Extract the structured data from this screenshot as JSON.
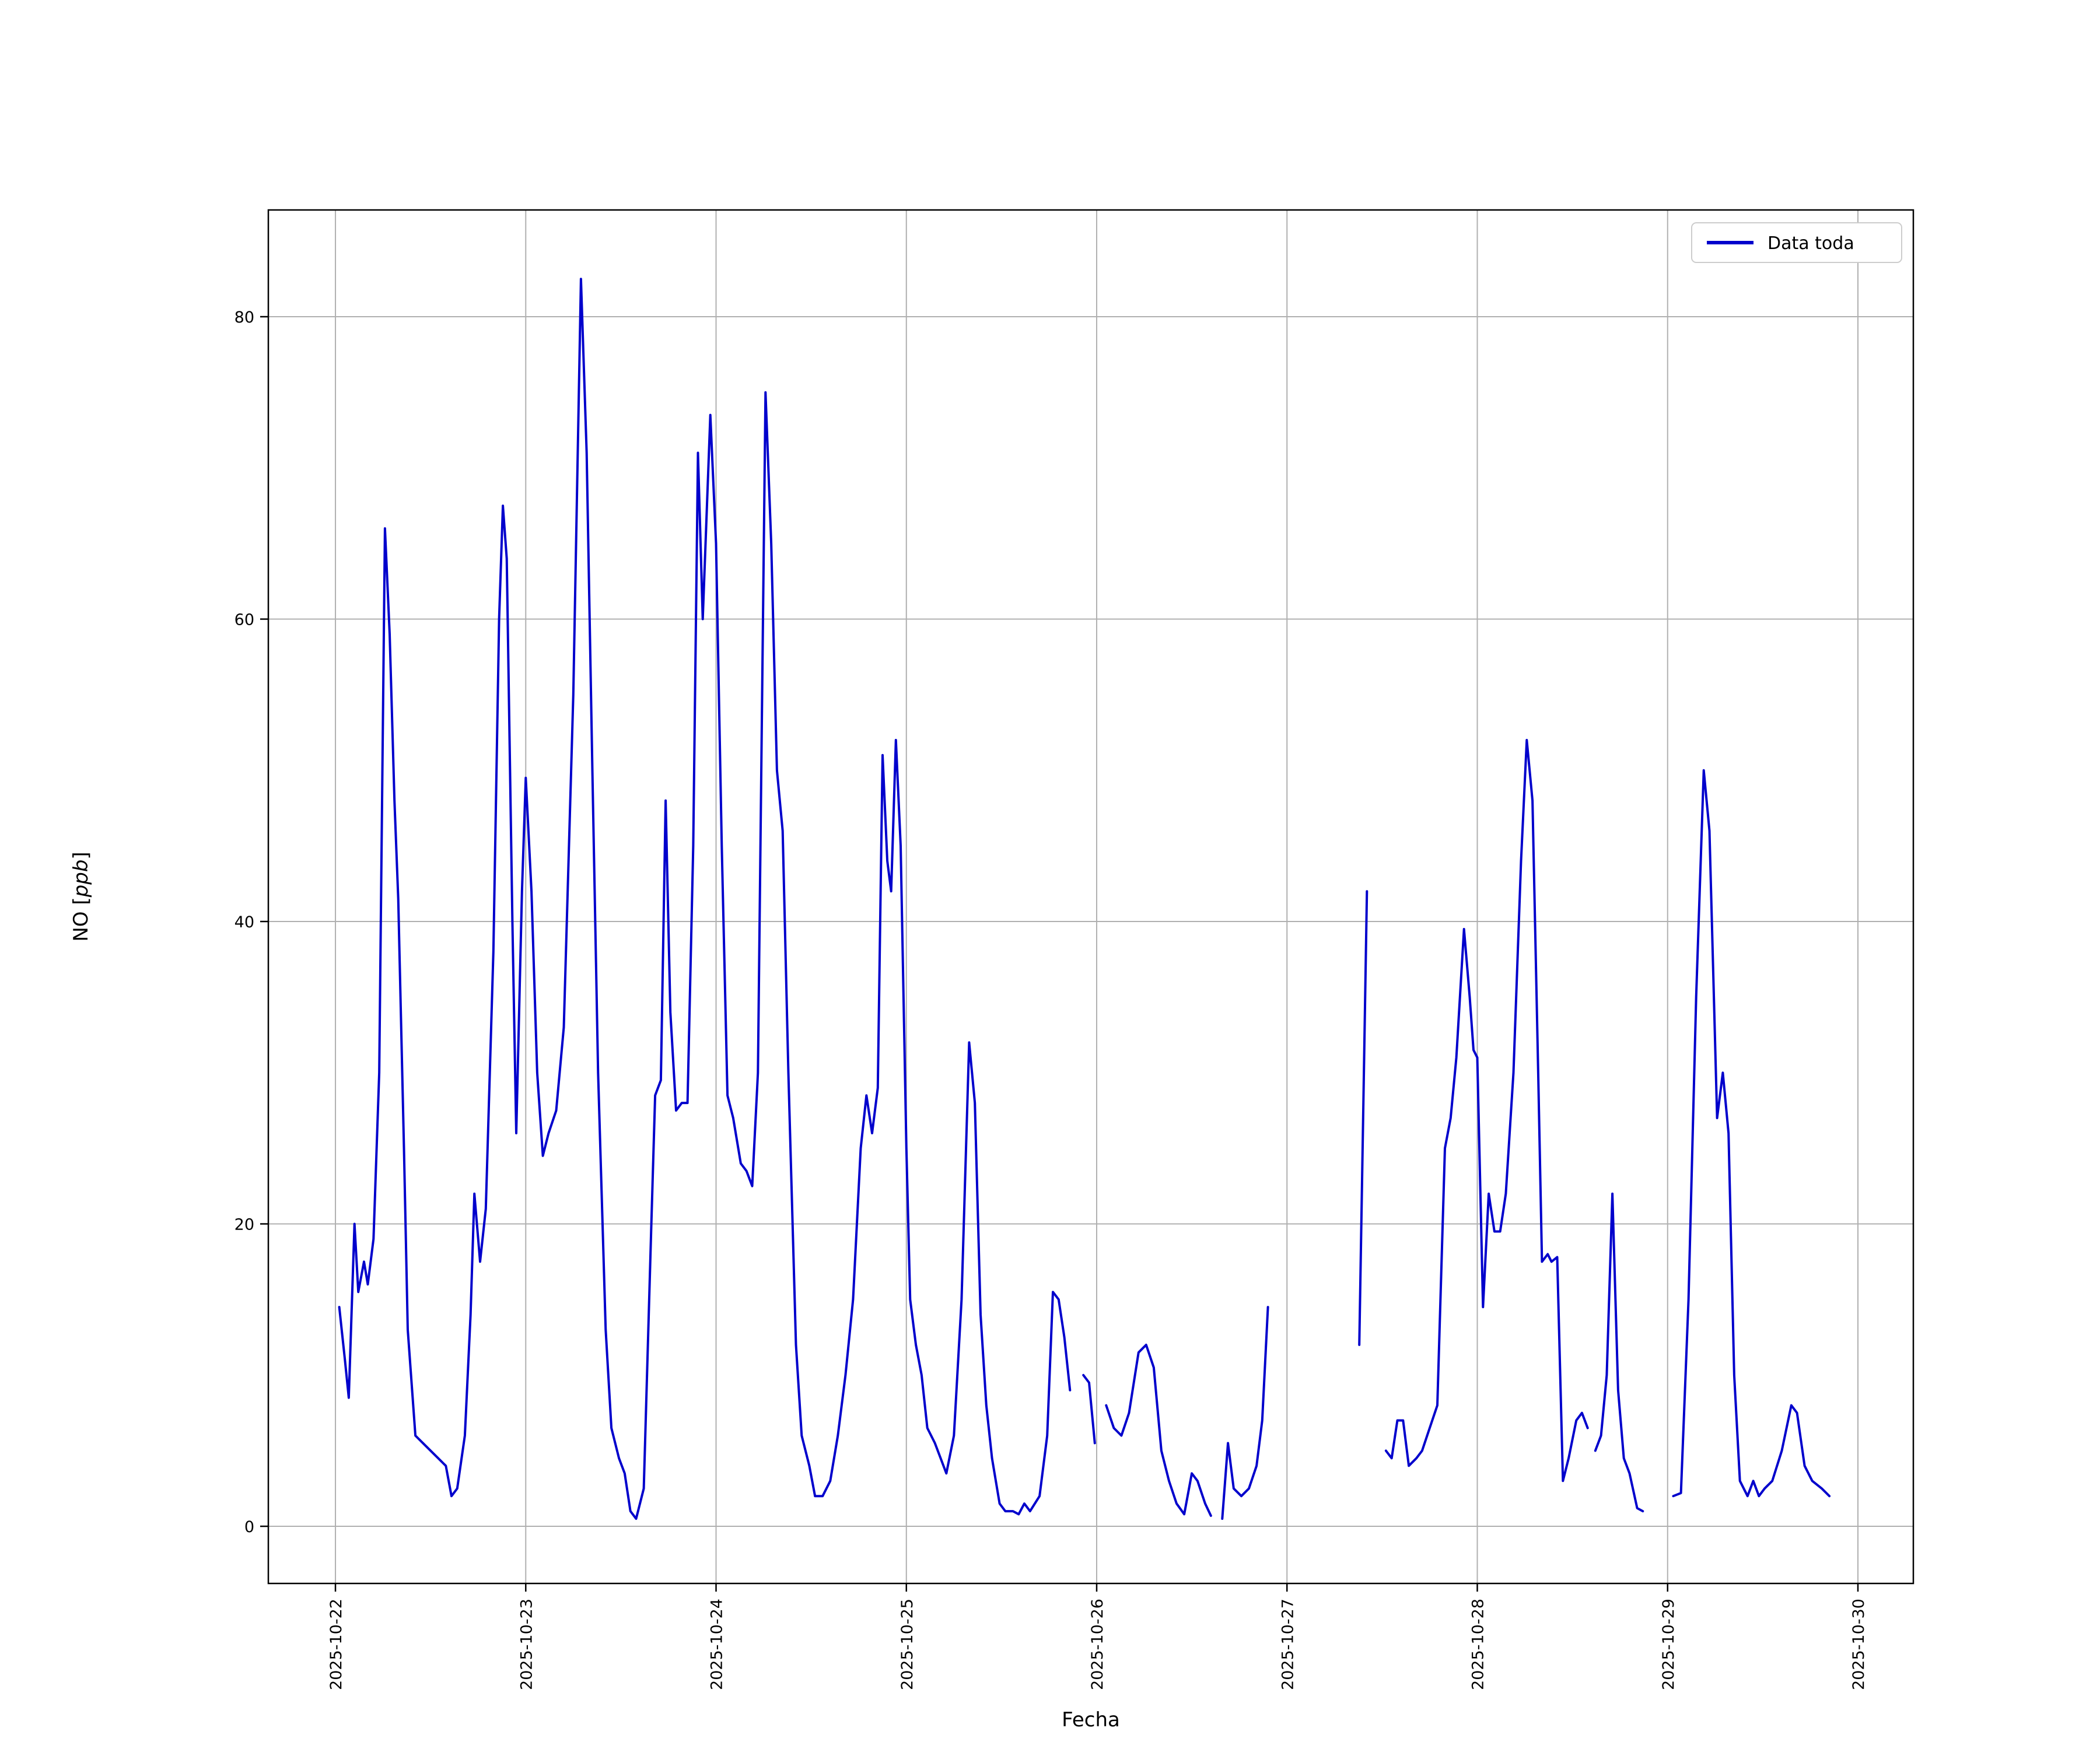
{
  "chart_data": {
    "type": "line",
    "title": "",
    "xlabel": "Fecha",
    "ylabel": "NO [ppb]",
    "ylabel_prefix": "NO [",
    "ylabel_unit": "ppb",
    "ylabel_suffix": "]",
    "legend": {
      "label": "Data toda",
      "position": "upper right"
    },
    "line_color": "#0000cc",
    "grid": true,
    "grid_color": "#b0b0b0",
    "x_unit": "days_since_2025-10-22",
    "xlim": [
      -0.3526,
      8.2912
    ],
    "ylim": [
      -3.78,
      87.06
    ],
    "x_ticks": [
      {
        "value": 0,
        "label": "2025-10-22"
      },
      {
        "value": 1,
        "label": "2025-10-23"
      },
      {
        "value": 2,
        "label": "2025-10-24"
      },
      {
        "value": 3,
        "label": "2025-10-25"
      },
      {
        "value": 4,
        "label": "2025-10-26"
      },
      {
        "value": 5,
        "label": "2025-10-27"
      },
      {
        "value": 6,
        "label": "2025-10-28"
      },
      {
        "value": 7,
        "label": "2025-10-29"
      },
      {
        "value": 8,
        "label": "2025-10-30"
      }
    ],
    "y_ticks": [
      {
        "value": 0,
        "label": "0"
      },
      {
        "value": 20,
        "label": "20"
      },
      {
        "value": 40,
        "label": "40"
      },
      {
        "value": 60,
        "label": "60"
      },
      {
        "value": 80,
        "label": "80"
      }
    ],
    "series": [
      {
        "name": "Data toda",
        "points": [
          [
            0.02,
            14.5
          ],
          [
            0.05,
            11
          ],
          [
            0.07,
            8.5
          ],
          [
            0.1,
            20
          ],
          [
            0.12,
            15.5
          ],
          [
            0.15,
            17.5
          ],
          [
            0.17,
            16
          ],
          [
            0.2,
            19
          ],
          [
            0.23,
            30
          ],
          [
            0.26,
            66
          ],
          [
            0.285,
            59
          ],
          [
            0.31,
            48
          ],
          [
            0.33,
            41.5
          ],
          [
            0.36,
            25
          ],
          [
            0.38,
            13
          ],
          [
            0.42,
            6
          ],
          [
            0.46,
            5.5
          ],
          [
            0.5,
            5
          ],
          [
            0.54,
            4.5
          ],
          [
            0.58,
            4
          ],
          [
            0.61,
            2
          ],
          [
            0.64,
            2.5
          ],
          [
            0.68,
            6
          ],
          [
            0.71,
            14
          ],
          [
            0.73,
            22
          ],
          [
            0.76,
            17.5
          ],
          [
            0.79,
            21
          ],
          [
            0.83,
            38
          ],
          [
            0.86,
            60
          ],
          [
            0.88,
            67.5
          ],
          [
            0.9,
            64
          ],
          [
            0.93,
            40
          ],
          [
            0.95,
            26
          ],
          [
            0.98,
            42
          ],
          [
            1.0,
            49.5
          ],
          [
            1.03,
            42
          ],
          [
            1.06,
            30
          ],
          [
            1.09,
            24.5
          ],
          [
            1.12,
            26
          ],
          [
            1.16,
            27.5
          ],
          [
            1.2,
            33
          ],
          [
            1.25,
            55
          ],
          [
            1.29,
            82.5
          ],
          [
            1.32,
            71
          ],
          [
            1.35,
            50
          ],
          [
            1.38,
            30
          ],
          [
            1.42,
            13
          ],
          [
            1.45,
            6.5
          ],
          [
            1.49,
            4.5
          ],
          [
            1.52,
            3.5
          ],
          [
            1.55,
            1
          ],
          [
            1.58,
            0.5
          ],
          [
            1.62,
            2.5
          ],
          [
            1.66,
            20
          ],
          [
            1.68,
            28.5
          ],
          [
            1.71,
            29.5
          ],
          [
            1.735,
            48
          ],
          [
            1.76,
            34
          ],
          [
            1.79,
            27.5
          ],
          [
            1.82,
            28
          ],
          [
            1.85,
            28
          ],
          [
            1.88,
            45
          ],
          [
            1.905,
            71
          ],
          [
            1.93,
            60
          ],
          [
            1.97,
            73.5
          ],
          [
            2.0,
            65
          ],
          [
            2.03,
            45
          ],
          [
            2.06,
            28.5
          ],
          [
            2.09,
            27
          ],
          [
            2.13,
            24
          ],
          [
            2.16,
            23.5
          ],
          [
            2.19,
            22.5
          ],
          [
            2.22,
            30
          ],
          [
            2.26,
            75
          ],
          [
            2.29,
            65
          ],
          [
            2.32,
            50
          ],
          [
            2.35,
            46
          ],
          [
            2.38,
            30
          ],
          [
            2.42,
            12
          ],
          [
            2.45,
            6
          ],
          [
            2.49,
            4
          ],
          [
            2.52,
            2
          ],
          [
            2.56,
            2
          ],
          [
            2.6,
            3
          ],
          [
            2.64,
            6
          ],
          [
            2.68,
            10
          ],
          [
            2.72,
            15
          ],
          [
            2.76,
            25
          ],
          [
            2.79,
            28.5
          ],
          [
            2.82,
            26
          ],
          [
            2.85,
            29
          ],
          [
            2.875,
            51
          ],
          [
            2.9,
            44
          ],
          [
            2.92,
            42
          ],
          [
            2.945,
            52
          ],
          [
            2.97,
            45
          ],
          [
            3.0,
            25
          ],
          [
            3.02,
            15
          ],
          [
            3.05,
            12
          ],
          [
            3.08,
            10
          ],
          [
            3.11,
            6.5
          ],
          [
            3.15,
            5.5
          ],
          [
            3.18,
            4.5
          ],
          [
            3.21,
            3.5
          ],
          [
            3.25,
            6
          ],
          [
            3.29,
            15
          ],
          [
            3.33,
            32
          ],
          [
            3.36,
            28
          ],
          [
            3.39,
            14
          ],
          [
            3.42,
            8
          ],
          [
            3.45,
            4.5
          ],
          [
            3.49,
            1.5
          ],
          [
            3.52,
            1
          ],
          [
            3.56,
            1
          ],
          [
            3.59,
            0.8
          ],
          [
            3.62,
            1.5
          ],
          [
            3.65,
            1
          ],
          [
            3.7,
            2
          ],
          [
            3.74,
            6
          ],
          [
            3.77,
            15.5
          ],
          [
            3.8,
            15
          ],
          [
            3.83,
            12.5
          ],
          [
            3.86,
            9
          ],
          [
            3.89,
            null
          ],
          [
            3.93,
            10
          ],
          [
            3.96,
            9.5
          ],
          [
            3.99,
            5.5
          ],
          [
            4.02,
            null
          ],
          [
            4.05,
            8
          ],
          [
            4.09,
            6.5
          ],
          [
            4.13,
            6
          ],
          [
            4.17,
            7.5
          ],
          [
            4.22,
            11.5
          ],
          [
            4.26,
            12
          ],
          [
            4.3,
            10.5
          ],
          [
            4.34,
            5
          ],
          [
            4.38,
            3
          ],
          [
            4.42,
            1.5
          ],
          [
            4.46,
            0.8
          ],
          [
            4.5,
            3.5
          ],
          [
            4.53,
            3
          ],
          [
            4.57,
            1.5
          ],
          [
            4.6,
            0.7
          ],
          [
            4.63,
            null
          ],
          [
            4.66,
            0.5
          ],
          [
            4.69,
            5.5
          ],
          [
            4.72,
            2.5
          ],
          [
            4.76,
            2
          ],
          [
            4.8,
            2.5
          ],
          [
            4.84,
            4
          ],
          [
            4.87,
            7
          ],
          [
            4.9,
            14.5
          ],
          [
            4.95,
            null
          ],
          [
            5.38,
            12
          ],
          [
            5.4,
            27
          ],
          [
            5.42,
            42
          ],
          [
            5.45,
            null
          ],
          [
            5.52,
            5
          ],
          [
            5.55,
            4.5
          ],
          [
            5.58,
            7
          ],
          [
            5.61,
            7
          ],
          [
            5.64,
            4
          ],
          [
            5.68,
            4.5
          ],
          [
            5.71,
            5
          ],
          [
            5.75,
            6.5
          ],
          [
            5.79,
            8
          ],
          [
            5.83,
            25
          ],
          [
            5.86,
            27
          ],
          [
            5.89,
            31
          ],
          [
            5.93,
            39.5
          ],
          [
            5.96,
            35
          ],
          [
            5.98,
            31.5
          ],
          [
            6.0,
            31
          ],
          [
            6.03,
            14.5
          ],
          [
            6.06,
            22
          ],
          [
            6.09,
            19.5
          ],
          [
            6.12,
            19.5
          ],
          [
            6.15,
            22
          ],
          [
            6.19,
            30
          ],
          [
            6.23,
            44
          ],
          [
            6.26,
            52
          ],
          [
            6.29,
            48
          ],
          [
            6.32,
            30
          ],
          [
            6.34,
            17.5
          ],
          [
            6.37,
            18
          ],
          [
            6.39,
            17.5
          ],
          [
            6.42,
            17.8
          ],
          [
            6.45,
            3
          ],
          [
            6.48,
            4.5
          ],
          [
            6.52,
            7
          ],
          [
            6.55,
            7.5
          ],
          [
            6.58,
            6.5
          ],
          [
            6.6,
            null
          ],
          [
            6.62,
            5
          ],
          [
            6.65,
            6
          ],
          [
            6.68,
            10
          ],
          [
            6.71,
            22
          ],
          [
            6.74,
            9
          ],
          [
            6.77,
            4.5
          ],
          [
            6.8,
            3.5
          ],
          [
            6.84,
            1.2
          ],
          [
            6.87,
            1
          ],
          [
            6.92,
            null
          ],
          [
            7.03,
            2
          ],
          [
            7.07,
            2.2
          ],
          [
            7.11,
            15
          ],
          [
            7.15,
            35
          ],
          [
            7.19,
            50
          ],
          [
            7.22,
            46
          ],
          [
            7.26,
            27
          ],
          [
            7.29,
            30
          ],
          [
            7.32,
            26
          ],
          [
            7.35,
            10
          ],
          [
            7.38,
            3
          ],
          [
            7.42,
            2
          ],
          [
            7.45,
            3
          ],
          [
            7.48,
            2
          ],
          [
            7.51,
            2.5
          ],
          [
            7.55,
            3
          ],
          [
            7.6,
            5
          ],
          [
            7.65,
            8
          ],
          [
            7.68,
            7.5
          ],
          [
            7.72,
            4
          ],
          [
            7.76,
            3
          ],
          [
            7.81,
            2.5
          ],
          [
            7.85,
            2
          ]
        ]
      }
    ]
  }
}
